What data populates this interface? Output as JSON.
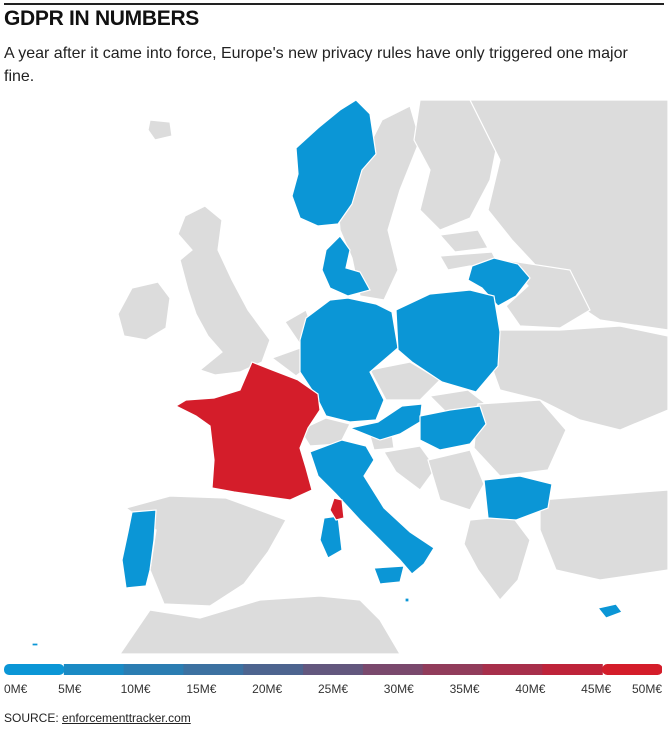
{
  "header": {
    "title": "GDPR IN NUMBERS",
    "subtitle": "A year after it came into force, Europe's new privacy rules have only triggered one major fine."
  },
  "colors": {
    "no_data": "#dcdcdc",
    "low_fine": "#0b96d6",
    "high_fine": "#d41d2a",
    "borders": "#ffffff"
  },
  "map": {
    "countries_low": [
      "Norway",
      "Denmark",
      "Lithuania",
      "Germany",
      "Poland",
      "Austria",
      "Hungary",
      "Italy",
      "Bulgaria",
      "Portugal",
      "Cyprus",
      "Malta"
    ],
    "countries_high": [
      "France"
    ],
    "countries_no_data": [
      "United Kingdom",
      "Ireland",
      "Iceland",
      "Sweden",
      "Finland",
      "Estonia",
      "Latvia",
      "Belarus",
      "Ukraine",
      "Netherlands",
      "Belgium",
      "Czech Republic",
      "Slovakia",
      "Switzerland",
      "Slovenia",
      "Croatia",
      "Romania",
      "Serbia",
      "Greece",
      "Turkey",
      "Spain",
      "Morocco",
      "Algeria",
      "Tunisia",
      "Russia"
    ]
  },
  "legend": {
    "min": 0,
    "max": 50,
    "steps": 10,
    "tick_labels": [
      "0M€",
      "5M€",
      "10M€",
      "15M€",
      "20M€",
      "25M€",
      "30M€",
      "35M€",
      "40M€",
      "45M€",
      "50M€"
    ],
    "segment_colors": [
      "#0b96d6",
      "#1a8ac4",
      "#2b7db2",
      "#3c71a1",
      "#4d648f",
      "#63577e",
      "#7a496d",
      "#913c5b",
      "#a72f4b",
      "#be233a",
      "#d41d2a"
    ]
  },
  "source": {
    "prefix": "SOURCE: ",
    "link_text": "enforcementtracker.com"
  }
}
